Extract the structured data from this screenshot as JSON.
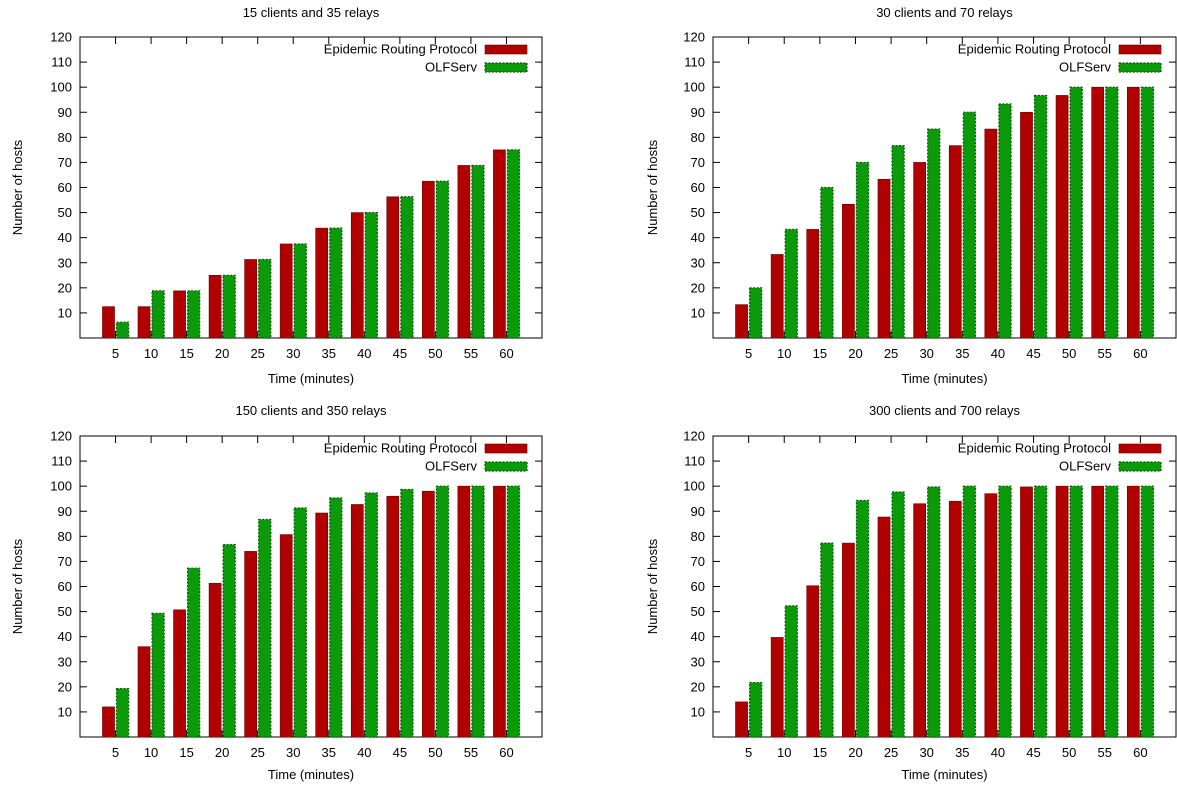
{
  "colors": {
    "epidemic": "#b10000",
    "epidemic_dark": "#6e0000",
    "olfserv": "#0a9a0a",
    "olfserv_dark": "#055d05",
    "axis": "#000000"
  },
  "chart_data": [
    {
      "type": "bar",
      "title": "15 clients and 35 relays",
      "xlabel": "Time (minutes)",
      "ylabel": "Number of hosts",
      "categories": [
        "5",
        "10",
        "15",
        "20",
        "25",
        "30",
        "35",
        "40",
        "45",
        "50",
        "55",
        "60"
      ],
      "yticks": [
        "10",
        "20",
        "30",
        "40",
        "50",
        "60",
        "70",
        "80",
        "90",
        "100",
        "110",
        "120"
      ],
      "ylim": [
        0,
        120
      ],
      "legend_position": "top-right",
      "grid": false,
      "series": [
        {
          "name": "Epidemic Routing Protocol",
          "values": [
            12.5,
            12.5,
            18.8,
            25,
            31.3,
            37.5,
            43.8,
            50,
            56.3,
            62.5,
            68.8,
            75
          ]
        },
        {
          "name": "OLFServ",
          "values": [
            6.3,
            18.8,
            18.8,
            25,
            31.3,
            37.5,
            43.8,
            50,
            56.3,
            62.5,
            68.8,
            75
          ]
        }
      ]
    },
    {
      "type": "bar",
      "title": "30 clients and 70 relays",
      "xlabel": "Time (minutes)",
      "ylabel": "Number of hosts",
      "categories": [
        "5",
        "10",
        "15",
        "20",
        "25",
        "30",
        "35",
        "40",
        "45",
        "50",
        "55",
        "60"
      ],
      "yticks": [
        "10",
        "20",
        "30",
        "40",
        "50",
        "60",
        "70",
        "80",
        "90",
        "100",
        "110",
        "120"
      ],
      "ylim": [
        0,
        120
      ],
      "legend_position": "top-right",
      "grid": false,
      "series": [
        {
          "name": "Epidemic Routing Protocol",
          "values": [
            13.3,
            33.3,
            43.3,
            53.3,
            63.3,
            70,
            76.7,
            83.3,
            90,
            96.7,
            100,
            100
          ]
        },
        {
          "name": "OLFServ",
          "values": [
            20,
            43.3,
            60,
            70,
            76.7,
            83.3,
            90,
            93.3,
            96.7,
            100,
            100,
            100
          ]
        }
      ]
    },
    {
      "type": "bar",
      "title": "150 clients and 350 relays",
      "xlabel": "Time (minutes)",
      "ylabel": "Number of hosts",
      "categories": [
        "5",
        "10",
        "15",
        "20",
        "25",
        "30",
        "35",
        "40",
        "45",
        "50",
        "55",
        "60"
      ],
      "yticks": [
        "10",
        "20",
        "30",
        "40",
        "50",
        "60",
        "70",
        "80",
        "90",
        "100",
        "110",
        "120"
      ],
      "ylim": [
        0,
        120
      ],
      "legend_position": "top-right",
      "grid": false,
      "series": [
        {
          "name": "Epidemic Routing Protocol",
          "values": [
            12,
            36,
            50.7,
            61.3,
            74,
            80.7,
            89.3,
            92.7,
            96,
            98,
            100,
            100
          ]
        },
        {
          "name": "OLFServ",
          "values": [
            19.3,
            49.3,
            67.3,
            76.7,
            86.7,
            91.3,
            95.3,
            97.3,
            98.7,
            100,
            100,
            100
          ]
        }
      ]
    },
    {
      "type": "bar",
      "title": "300 clients and 700 relays",
      "xlabel": "Time (minutes)",
      "ylabel": "Number of hosts",
      "categories": [
        "5",
        "10",
        "15",
        "20",
        "25",
        "30",
        "35",
        "40",
        "45",
        "50",
        "55",
        "60"
      ],
      "yticks": [
        "10",
        "20",
        "30",
        "40",
        "50",
        "60",
        "70",
        "80",
        "90",
        "100",
        "110",
        "120"
      ],
      "ylim": [
        0,
        120
      ],
      "legend_position": "top-right",
      "grid": false,
      "series": [
        {
          "name": "Epidemic Routing Protocol",
          "values": [
            14,
            39.7,
            60.3,
            77.3,
            87.7,
            93,
            94,
            97,
            99.7,
            100,
            100,
            100
          ]
        },
        {
          "name": "OLFServ",
          "values": [
            21.7,
            52.3,
            77.3,
            94.3,
            97.7,
            99.7,
            100,
            100,
            100,
            100,
            100,
            100
          ]
        }
      ]
    }
  ]
}
